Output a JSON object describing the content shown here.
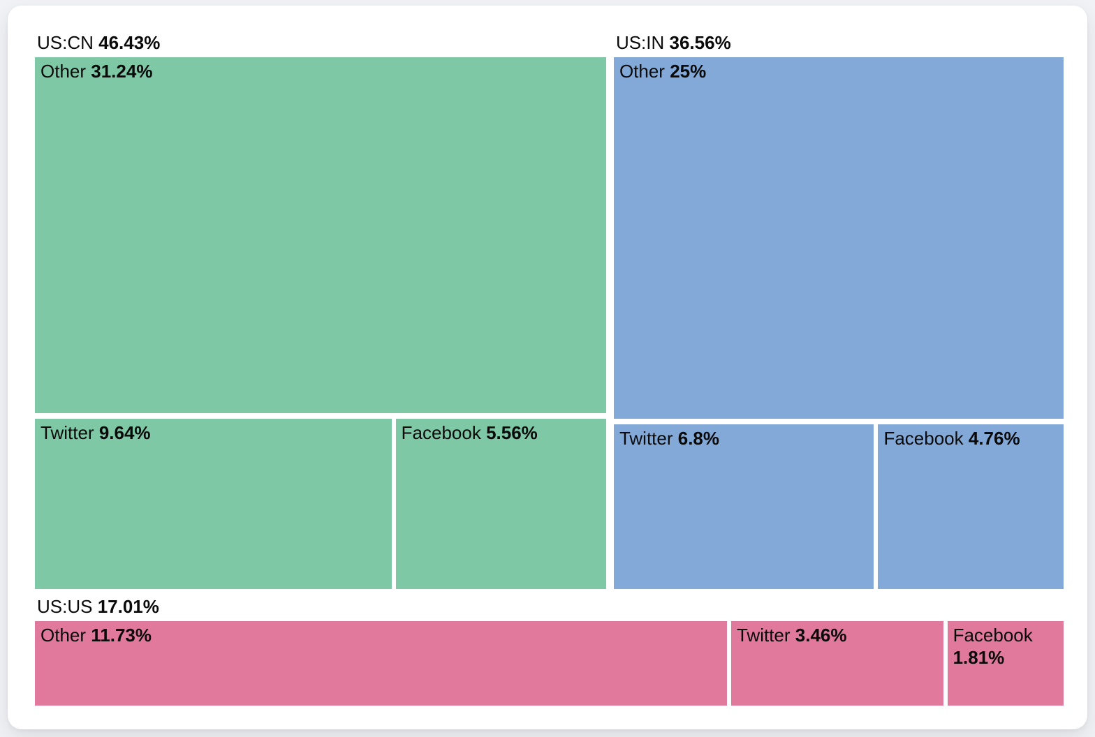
{
  "chart_data": {
    "type": "treemap",
    "title": "",
    "unit": "%",
    "layout": {
      "legend": false,
      "grid": false,
      "top_row_groups": 2,
      "bottom_row_groups": 1
    },
    "groups": [
      {
        "label": "US:CN",
        "value_display": "46.43%",
        "value": 46.43,
        "color": "#7ec8a5",
        "row": "top",
        "arrangement": "stacked",
        "children": [
          {
            "label": "Other",
            "value_display": "31.24%",
            "value": 31.24
          },
          {
            "label": "Twitter",
            "value_display": "9.64%",
            "value": 9.64
          },
          {
            "label": "Facebook",
            "value_display": "5.56%",
            "value": 5.56
          }
        ]
      },
      {
        "label": "US:IN",
        "value_display": "36.56%",
        "value": 36.56,
        "color": "#83a9d8",
        "row": "top",
        "arrangement": "stacked",
        "children": [
          {
            "label": "Other",
            "value_display": "25%",
            "value": 25
          },
          {
            "label": "Twitter",
            "value_display": "6.8%",
            "value": 6.8
          },
          {
            "label": "Facebook",
            "value_display": "4.76%",
            "value": 4.76
          }
        ]
      },
      {
        "label": "US:US",
        "value_display": "17.01%",
        "value": 17.01,
        "color": "#e0799c",
        "row": "bottom",
        "arrangement": "row",
        "children": [
          {
            "label": "Other",
            "value_display": "11.73%",
            "value": 11.73
          },
          {
            "label": "Twitter",
            "value_display": "3.46%",
            "value": 3.46
          },
          {
            "label": "Facebook",
            "value_display": "1.81%",
            "value": 1.81
          }
        ]
      }
    ]
  },
  "colors": {
    "background": "#f1f2f5",
    "card": "#ffffff",
    "text": "#0a0a0b",
    "group_us_cn": "#7ec8a5",
    "group_us_in": "#83a9d8",
    "group_us_us": "#e0799c"
  }
}
